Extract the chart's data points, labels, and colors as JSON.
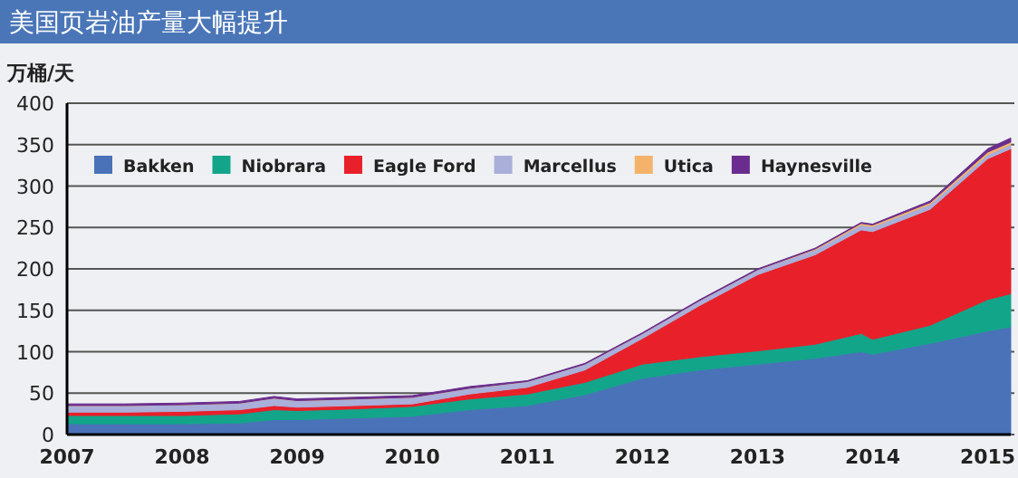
{
  "chart_data": {
    "type": "area",
    "title": "美国页岩油产量大幅提升",
    "ylabel": "万桶/天",
    "stacked": true,
    "grid": "y",
    "legend": "top",
    "x": [
      2007,
      2007.5,
      2008,
      2008.5,
      2008.8,
      2009,
      2009.5,
      2010,
      2010.5,
      2011,
      2011.5,
      2012,
      2012.5,
      2013,
      2013.5,
      2013.9,
      2014,
      2014.5,
      2015,
      2015.2
    ],
    "xlim": [
      2007,
      2015.2
    ],
    "xticks": [
      2007,
      2008,
      2009,
      2010,
      2011,
      2012,
      2013,
      2014,
      2015
    ],
    "ylim": [
      0,
      400
    ],
    "yticks": [
      0,
      50,
      100,
      150,
      200,
      250,
      300,
      350,
      400
    ],
    "series": [
      {
        "name": "Bakken",
        "color": "#4a72b8",
        "values": [
          13,
          13,
          13,
          14,
          18,
          18,
          20,
          22,
          30,
          35,
          48,
          68,
          78,
          85,
          92,
          100,
          97,
          110,
          125,
          130
        ]
      },
      {
        "name": "Niobrara",
        "color": "#13a58a",
        "values": [
          10,
          10,
          10,
          11,
          12,
          11,
          11,
          12,
          13,
          14,
          15,
          17,
          16,
          16,
          17,
          22,
          18,
          22,
          38,
          40
        ]
      },
      {
        "name": "Eagle Ford",
        "color": "#e8202a",
        "values": [
          4,
          4,
          5,
          5,
          5,
          4,
          4,
          3,
          6,
          8,
          15,
          31,
          62,
          92,
          108,
          125,
          130,
          140,
          170,
          175
        ]
      },
      {
        "name": "Marcellus",
        "color": "#a9afd8",
        "values": [
          8,
          8,
          8,
          8,
          9,
          8,
          8,
          8,
          7,
          7,
          7,
          6,
          6,
          6,
          6,
          6,
          6,
          6,
          5,
          5
        ]
      },
      {
        "name": "Utica",
        "color": "#f5b26b",
        "values": [
          0,
          0,
          0,
          0,
          0,
          0,
          0,
          0,
          0,
          0,
          0,
          0,
          0,
          0,
          1,
          2,
          2,
          2,
          3,
          3
        ]
      },
      {
        "name": "Haynesville",
        "color": "#6a2d8f",
        "values": [
          2,
          2,
          2,
          2,
          2,
          2,
          2,
          2,
          2,
          1,
          1,
          1,
          1,
          1,
          1,
          1,
          1,
          2,
          4,
          5
        ]
      }
    ]
  }
}
